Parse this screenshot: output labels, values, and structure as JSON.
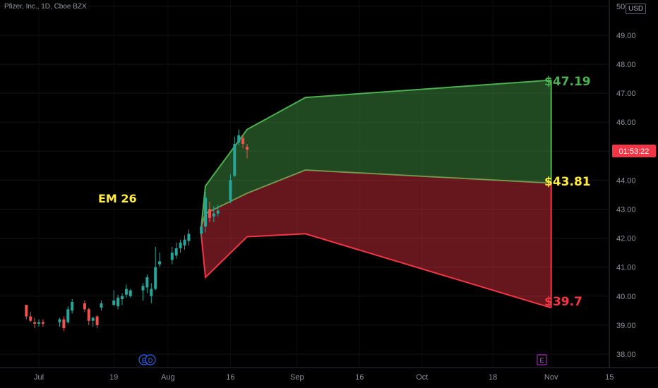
{
  "header": {
    "title": "Pfizer, Inc., 1D, Cboe BZX",
    "currency": "USD"
  },
  "countdown": "01:53:22",
  "annotations": {
    "em_label": "EM 26",
    "top_price": "$47.19",
    "mid_price": "$43.81",
    "low_price": "$39.7"
  },
  "markers": {
    "earnings_letter": "E",
    "dividend_letter": "D"
  },
  "colors": {
    "green": "#4caf50",
    "red": "#f23645",
    "yellow": "#ffeb3b",
    "candle_up": "#26a69a",
    "candle_down": "#ef5350"
  },
  "chart_data": {
    "type": "candlestick",
    "title": "Pfizer, Inc., 1D, Cboe BZX",
    "ylim": [
      37.6,
      50.0
    ],
    "y_ticks": [
      "38.00",
      "39.00",
      "40.00",
      "41.00",
      "42.00",
      "43.00",
      "44.00",
      "45.00",
      "46.00",
      "47.00",
      "48.00",
      "49.00",
      "50.00"
    ],
    "x_ticks": [
      "Jul",
      "19",
      "Aug",
      "16",
      "Sep",
      "16",
      "Oct",
      "18",
      "Nov",
      "15"
    ],
    "candles": [
      {
        "date": "Jun 28",
        "o": 39.7,
        "h": 39.7,
        "l": 39.2,
        "c": 39.3
      },
      {
        "date": "Jun 29",
        "o": 39.3,
        "h": 39.45,
        "l": 39.1,
        "c": 39.15
      },
      {
        "date": "Jun 30",
        "o": 39.1,
        "h": 39.25,
        "l": 38.9,
        "c": 39.05
      },
      {
        "date": "Jul 1",
        "o": 39.05,
        "h": 39.2,
        "l": 38.95,
        "c": 39.1
      },
      {
        "date": "Jul 2",
        "o": 39.1,
        "h": 39.2,
        "l": 38.95,
        "c": 39.05
      },
      {
        "date": "Jul 6",
        "o": 39.1,
        "h": 39.25,
        "l": 38.95,
        "c": 39.2
      },
      {
        "date": "Jul 7",
        "o": 39.2,
        "h": 39.3,
        "l": 38.8,
        "c": 38.9
      },
      {
        "date": "Jul 8",
        "o": 39.1,
        "h": 39.65,
        "l": 39.05,
        "c": 39.55
      },
      {
        "date": "Jul 9",
        "o": 39.5,
        "h": 39.9,
        "l": 39.4,
        "c": 39.8
      },
      {
        "date": "Jul 12",
        "o": 39.75,
        "h": 39.85,
        "l": 39.45,
        "c": 39.55
      },
      {
        "date": "Jul 13",
        "o": 39.55,
        "h": 39.6,
        "l": 39.0,
        "c": 39.15
      },
      {
        "date": "Jul 14",
        "o": 39.15,
        "h": 39.3,
        "l": 38.95,
        "c": 39.25
      },
      {
        "date": "Jul 15",
        "o": 39.3,
        "h": 39.35,
        "l": 38.9,
        "c": 39.0
      },
      {
        "date": "Jul 16",
        "o": 39.6,
        "h": 39.85,
        "l": 39.5,
        "c": 39.75
      },
      {
        "date": "Jul 19",
        "o": 39.7,
        "h": 40.2,
        "l": 39.65,
        "c": 39.85
      },
      {
        "date": "Jul 20",
        "o": 39.65,
        "h": 40.05,
        "l": 39.55,
        "c": 39.95
      },
      {
        "date": "Jul 21",
        "o": 39.9,
        "h": 40.1,
        "l": 39.7,
        "c": 40.0
      },
      {
        "date": "Jul 22",
        "o": 40.05,
        "h": 40.4,
        "l": 39.95,
        "c": 40.25
      },
      {
        "date": "Jul 23",
        "o": 40.0,
        "h": 40.25,
        "l": 39.95,
        "c": 40.2
      },
      {
        "date": "Jul 26",
        "o": 40.2,
        "h": 40.45,
        "l": 39.85,
        "c": 40.35
      },
      {
        "date": "Jul 27",
        "o": 40.3,
        "h": 40.75,
        "l": 40.1,
        "c": 40.65
      },
      {
        "date": "Jul 28",
        "o": 40.0,
        "h": 40.45,
        "l": 39.75,
        "c": 40.25
      },
      {
        "date": "Jul 29",
        "o": 40.25,
        "h": 41.7,
        "l": 40.2,
        "c": 41.0
      },
      {
        "date": "Jul 30",
        "o": 41.1,
        "h": 41.5,
        "l": 41.0,
        "c": 41.2
      },
      {
        "date": "Aug 2",
        "o": 41.25,
        "h": 41.7,
        "l": 41.1,
        "c": 41.5
      },
      {
        "date": "Aug 3",
        "o": 41.4,
        "h": 41.85,
        "l": 41.3,
        "c": 41.65
      },
      {
        "date": "Aug 4",
        "o": 41.65,
        "h": 41.95,
        "l": 41.5,
        "c": 41.85
      },
      {
        "date": "Aug 5",
        "o": 41.75,
        "h": 42.1,
        "l": 41.6,
        "c": 41.95
      },
      {
        "date": "Aug 6",
        "o": 41.9,
        "h": 42.3,
        "l": 41.75,
        "c": 42.15
      },
      {
        "date": "Aug 9",
        "o": 42.15,
        "h": 42.55,
        "l": 42.0,
        "c": 42.4
      },
      {
        "date": "Aug 10",
        "o": 42.4,
        "h": 43.6,
        "l": 42.2,
        "c": 43.4
      },
      {
        "date": "Aug 11",
        "o": 43.0,
        "h": 43.25,
        "l": 42.55,
        "c": 42.7
      },
      {
        "date": "Aug 12",
        "o": 42.75,
        "h": 43.1,
        "l": 42.55,
        "c": 42.85
      },
      {
        "date": "Aug 13",
        "o": 42.85,
        "h": 43.15,
        "l": 42.75,
        "c": 42.95
      },
      {
        "date": "Aug 16",
        "o": 43.3,
        "h": 44.2,
        "l": 43.2,
        "c": 44.0
      },
      {
        "date": "Aug 17",
        "o": 44.15,
        "h": 45.5,
        "l": 44.1,
        "c": 45.25
      },
      {
        "date": "Aug 18",
        "o": 45.3,
        "h": 45.75,
        "l": 45.2,
        "c": 45.55
      },
      {
        "date": "Aug 19",
        "o": 45.45,
        "h": 45.55,
        "l": 45.1,
        "c": 45.25
      },
      {
        "date": "Aug 20",
        "o": 45.15,
        "h": 45.25,
        "l": 44.75,
        "c": 45.05
      }
    ],
    "expected_move_bands": {
      "upper": [
        {
          "date": "Aug 9",
          "price": 42.4
        },
        {
          "date": "Aug 10",
          "price": 43.8
        },
        {
          "date": "Aug 20",
          "price": 45.75
        },
        {
          "date": "Sep 3",
          "price": 46.85
        },
        {
          "date": "Nov 1",
          "price": 47.45
        }
      ],
      "middle": [
        {
          "date": "Aug 9",
          "price": 42.4
        },
        {
          "date": "Aug 10",
          "price": 42.85
        },
        {
          "date": "Aug 20",
          "price": 43.55
        },
        {
          "date": "Sep 3",
          "price": 44.35
        },
        {
          "date": "Nov 1",
          "price": 43.9
        }
      ],
      "lower": [
        {
          "date": "Aug 9",
          "price": 42.1
        },
        {
          "date": "Aug 10",
          "price": 40.65
        },
        {
          "date": "Aug 20",
          "price": 42.05
        },
        {
          "date": "Sep 3",
          "price": 42.15
        },
        {
          "date": "Nov 1",
          "price": 39.6
        }
      ]
    },
    "last_price_label": "01:53:22",
    "band_labels": [
      "$47.19",
      "$43.81",
      "$39.7"
    ],
    "annotation": "EM 26"
  }
}
